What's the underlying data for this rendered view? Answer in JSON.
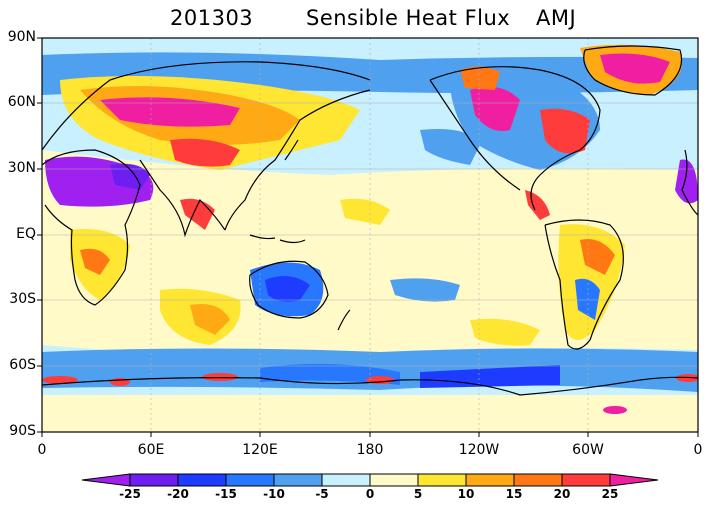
{
  "title": {
    "date": "201303",
    "name": "Sensible Heat Flux",
    "season": "AMJ"
  },
  "map": {
    "projection": "equirectangular",
    "lat_ticks": [
      "90N",
      "60N",
      "30N",
      "EQ",
      "30S",
      "60S",
      "90S"
    ],
    "lon_ticks": [
      "0",
      "60E",
      "120E",
      "180",
      "120W",
      "60W",
      "0"
    ]
  },
  "colorbar": {
    "labels": [
      "-25",
      "-20",
      "-15",
      "-10",
      "-5",
      "0",
      "5",
      "10",
      "15",
      "20",
      "25"
    ],
    "colors": [
      "#a020f0",
      "#6e1ef0",
      "#1e3cff",
      "#2878ff",
      "#50a0f0",
      "#c8f0ff",
      "#fffac8",
      "#ffe632",
      "#ffaa14",
      "#ff7814",
      "#ff3c3c",
      "#f01ea0"
    ]
  }
}
